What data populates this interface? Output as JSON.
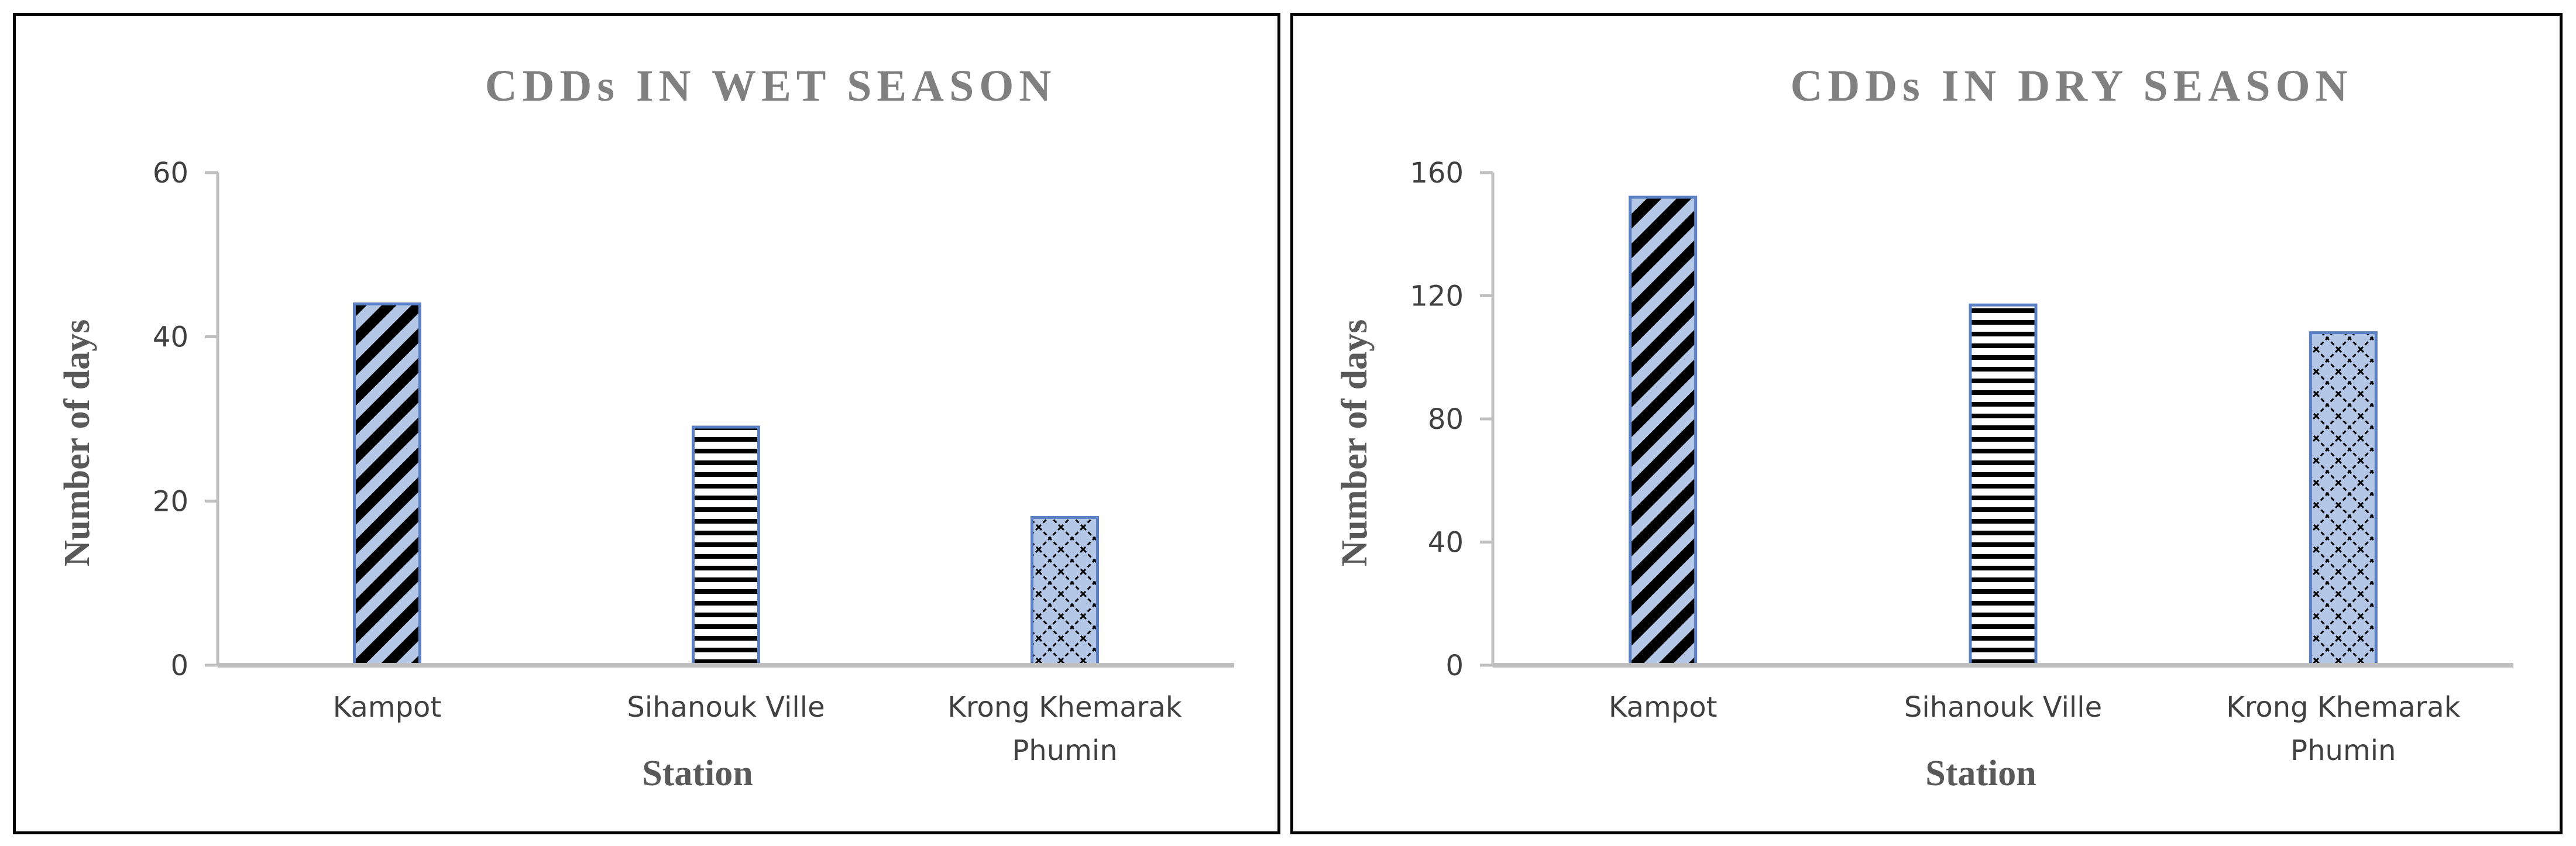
{
  "colors": {
    "title": "#808080",
    "axis_title": "#595959",
    "tick_label": "#404040",
    "axis_line": "#bfbfbf",
    "bar_fill": "#b4c7e7",
    "bar_pattern": "#000000",
    "bar_edge": "#5b7fc4"
  },
  "chart_data": [
    {
      "type": "bar",
      "title": "CDDs IN WET SEASON",
      "xlabel": "Station",
      "ylabel": "Number of days",
      "categories": [
        "Kampot",
        "Sihanouk Ville",
        "Krong Khemarak Phumin"
      ],
      "category_lines": [
        [
          "Kampot"
        ],
        [
          "Sihanouk Ville"
        ],
        [
          "Krong Khemarak",
          "Phumin"
        ]
      ],
      "values": [
        44,
        29,
        18
      ],
      "patterns": [
        "diagonal",
        "horizontal",
        "diamond"
      ],
      "yticks": [
        "0",
        "20",
        "40",
        "60"
      ],
      "ylim": [
        0,
        60
      ],
      "grid": false,
      "legend": "none"
    },
    {
      "type": "bar",
      "title": "CDDs IN DRY SEASON",
      "xlabel": "Station",
      "ylabel": "Number of days",
      "categories": [
        "Kampot",
        "Sihanouk Ville",
        "Krong Khemarak Phumin"
      ],
      "category_lines": [
        [
          "Kampot"
        ],
        [
          "Sihanouk Ville"
        ],
        [
          "Krong Khemarak",
          "Phumin"
        ]
      ],
      "values": [
        152,
        117,
        108
      ],
      "patterns": [
        "diagonal",
        "horizontal",
        "diamond"
      ],
      "yticks": [
        "0",
        "40",
        "80",
        "120",
        "160"
      ],
      "ylim": [
        0,
        160
      ],
      "grid": false,
      "legend": "none"
    }
  ]
}
